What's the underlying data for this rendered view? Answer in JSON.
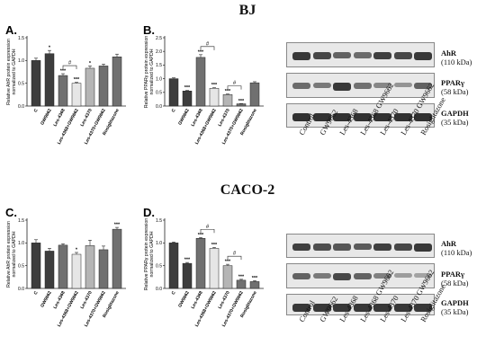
{
  "titles": {
    "bj": "BJ",
    "caco": "CACO-2"
  },
  "colors": {
    "bar_dark": "#3d3d3d",
    "bar_mid": "#707070",
    "bar_light": "#b5b5b5",
    "bar_white": "#e6e6e6",
    "line": "#222222",
    "blot_bg": "#e8e8e8",
    "band": "#2a2a2a"
  },
  "blot_lanes": [
    "Control",
    "GW9662",
    "Les-4368",
    "Les-4368 GW9662",
    "Les-4370",
    "Les-4370 GW9662",
    "Rosiglitazone"
  ],
  "blot_labels": {
    "ahr": {
      "name": "AhR",
      "kda": "(110 kDa)"
    },
    "ppar": {
      "name": "PPARγ",
      "kda": "(58 kDa)"
    },
    "gapdh": {
      "name": "GAPDH",
      "kda": "(35 kDa)"
    }
  },
  "chart_data": [
    {
      "type": "bar",
      "panel": "A.",
      "ylabel": "Relative AhR protein expression normalized to GAPDH",
      "categories": [
        "C",
        "GW9662",
        "Les-4368",
        "Les-4368+GW9662",
        "Les-4370",
        "Les-4370+GW9662",
        "Rosiglitazone"
      ],
      "values": [
        1.0,
        1.15,
        0.67,
        0.5,
        0.83,
        0.88,
        1.08
      ],
      "errors": [
        0.05,
        0.07,
        0.04,
        0.02,
        0.05,
        0.04,
        0.06
      ],
      "annotations": [
        "",
        "*",
        "***",
        "***",
        "*",
        "",
        ""
      ],
      "bracket": {
        "from": 2,
        "to": 3,
        "label": "#"
      },
      "ylim": [
        0,
        1.5
      ],
      "yticks": [
        "0.0",
        "0.5",
        "1.0",
        "1.5"
      ]
    },
    {
      "type": "bar",
      "panel": "B.",
      "ylabel": "Relative PPARγ protein expression normalized to GAPDH",
      "categories": [
        "C",
        "GW9662",
        "Les-4368",
        "Les-4368+GW9662",
        "Les-4370",
        "Les-4370+GW9662",
        "Rosiglitazone"
      ],
      "values": [
        1.0,
        0.55,
        1.78,
        0.65,
        0.42,
        0.08,
        0.85
      ],
      "errors": [
        0.03,
        0.02,
        0.1,
        0.02,
        0.02,
        0.01,
        0.04
      ],
      "annotations": [
        "",
        "***",
        "***",
        "***",
        "***",
        "***",
        ""
      ],
      "bracket": [
        {
          "from": 2,
          "to": 3,
          "label": "#"
        },
        {
          "from": 4,
          "to": 5,
          "label": "#"
        }
      ],
      "ylim": [
        0,
        2.5
      ],
      "yticks": [
        "0.0",
        "0.5",
        "1.0",
        "1.5",
        "2.0",
        "2.5"
      ]
    },
    {
      "type": "bar",
      "panel": "C.",
      "ylabel": "Relative AhR protein expression normalized to GAPDH",
      "categories": [
        "C",
        "GW9662",
        "Les-4368",
        "Les-4368+GW9662",
        "Les-4370",
        "Les-4370+GW9662",
        "Rosiglitazone"
      ],
      "values": [
        1.0,
        0.82,
        0.95,
        0.75,
        0.94,
        0.85,
        1.3
      ],
      "errors": [
        0.07,
        0.06,
        0.03,
        0.04,
        0.12,
        0.08,
        0.04
      ],
      "annotations": [
        "",
        "",
        "",
        "*",
        "",
        "",
        "***"
      ],
      "ylim": [
        0,
        1.5
      ],
      "yticks": [
        "0.0",
        "0.5",
        "1.0",
        "1.5"
      ]
    },
    {
      "type": "bar",
      "panel": "D.",
      "ylabel": "Relative PPARγ protein expression normalized to GAPDH",
      "categories": [
        "C",
        "GW9662",
        "Les-4368",
        "Les-4368+GW9662",
        "Les-4370",
        "Les-4370+GW9662",
        "Rosiglitazone"
      ],
      "values": [
        1.0,
        0.55,
        1.1,
        0.88,
        0.5,
        0.18,
        0.15
      ],
      "errors": [
        0.02,
        0.02,
        0.02,
        0.02,
        0.03,
        0.02,
        0.02
      ],
      "annotations": [
        "",
        "***",
        "***",
        "***",
        "***",
        "***",
        "***"
      ],
      "bracket": [
        {
          "from": 2,
          "to": 3,
          "label": "#"
        },
        {
          "from": 4,
          "to": 5,
          "label": "#"
        }
      ],
      "ylim": [
        0,
        1.5
      ],
      "yticks": [
        "0.0",
        "0.5",
        "1.0",
        "1.5"
      ]
    }
  ]
}
